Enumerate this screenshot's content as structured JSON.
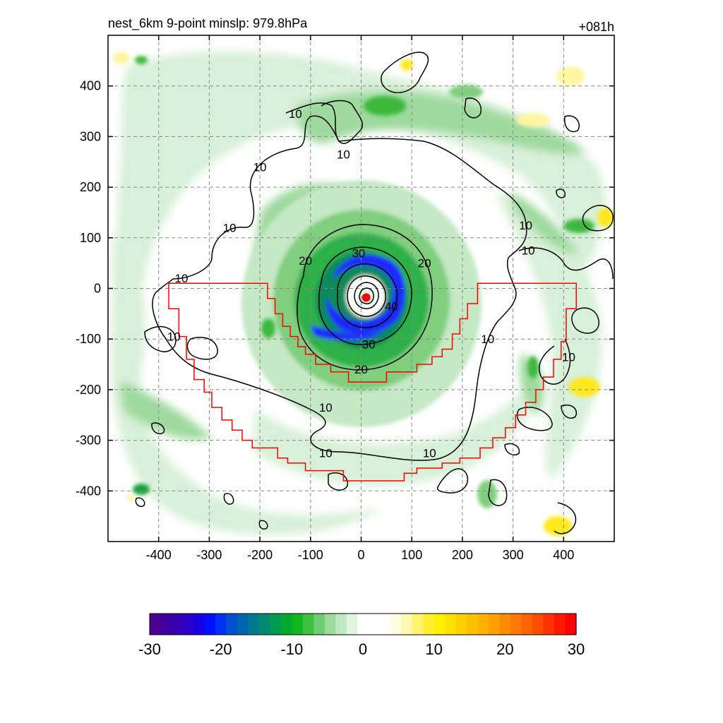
{
  "header": {
    "title": "nest_6km  9-point minslp: 979.8hPa",
    "time_label": "+081h"
  },
  "chart_data": {
    "type": "heatmap",
    "title": "nest_6km  9-point minslp: 979.8hPa",
    "time_label": "+081h",
    "xlim": [
      -500,
      500
    ],
    "ylim": [
      -500,
      500
    ],
    "x_ticks": [
      -400,
      -300,
      -200,
      -100,
      0,
      100,
      200,
      300,
      400
    ],
    "y_ticks": [
      400,
      300,
      200,
      100,
      0,
      -100,
      -200,
      -300,
      -400
    ],
    "x_tick_labels": [
      "-400",
      "-300",
      "-200",
      "-100",
      "0",
      "100",
      "200",
      "300",
      "400"
    ],
    "y_tick_labels": [
      "400",
      "300",
      "200",
      "100",
      "0",
      "-100",
      "-200",
      "-300",
      "-400"
    ],
    "grid": true,
    "storm_center": {
      "x": 10,
      "y": -18,
      "color": "#ff0000"
    },
    "contour_levels": [
      10,
      20,
      30,
      40
    ],
    "contour_labels": [
      {
        "text": "10",
        "x": -130,
        "y": 345
      },
      {
        "text": "10",
        "x": -35,
        "y": 265
      },
      {
        "text": "10",
        "x": -200,
        "y": 240
      },
      {
        "text": "10",
        "x": -260,
        "y": 120
      },
      {
        "text": "10",
        "x": -355,
        "y": 20
      },
      {
        "text": "10",
        "x": -370,
        "y": -95
      },
      {
        "text": "10",
        "x": 325,
        "y": 125
      },
      {
        "text": "10",
        "x": 330,
        "y": 75
      },
      {
        "text": "10",
        "x": 250,
        "y": -100
      },
      {
        "text": "10",
        "x": 410,
        "y": -135
      },
      {
        "text": "10",
        "x": -70,
        "y": -235
      },
      {
        "text": "10",
        "x": -70,
        "y": -325
      },
      {
        "text": "10",
        "x": 135,
        "y": -325
      },
      {
        "text": "20",
        "x": -110,
        "y": 55
      },
      {
        "text": "20",
        "x": 125,
        "y": 50
      },
      {
        "text": "20",
        "x": 0,
        "y": -160
      },
      {
        "text": "30",
        "x": -5,
        "y": 70
      },
      {
        "text": "30",
        "x": 15,
        "y": -110
      },
      {
        "text": "40",
        "x": 60,
        "y": -35
      }
    ],
    "domain_outline_color": "#ff0000",
    "domain_outline": [
      [
        -380,
        10
      ],
      [
        -185,
        10
      ],
      [
        -185,
        -20
      ],
      [
        -170,
        -20
      ],
      [
        -170,
        -50
      ],
      [
        -155,
        -50
      ],
      [
        -155,
        -75
      ],
      [
        -140,
        -75
      ],
      [
        -140,
        -95
      ],
      [
        -125,
        -95
      ],
      [
        -125,
        -115
      ],
      [
        -110,
        -115
      ],
      [
        -110,
        -130
      ],
      [
        -90,
        -130
      ],
      [
        -90,
        -150
      ],
      [
        -60,
        -150
      ],
      [
        -60,
        -165
      ],
      [
        -25,
        -165
      ],
      [
        -25,
        -185
      ],
      [
        50,
        -185
      ],
      [
        50,
        -165
      ],
      [
        110,
        -165
      ],
      [
        110,
        -150
      ],
      [
        140,
        -150
      ],
      [
        140,
        -135
      ],
      [
        160,
        -135
      ],
      [
        160,
        -120
      ],
      [
        180,
        -120
      ],
      [
        180,
        -90
      ],
      [
        195,
        -90
      ],
      [
        195,
        -60
      ],
      [
        210,
        -60
      ],
      [
        210,
        -30
      ],
      [
        230,
        -30
      ],
      [
        230,
        10
      ],
      [
        425,
        10
      ],
      [
        425,
        -40
      ],
      [
        405,
        -40
      ],
      [
        405,
        -105
      ],
      [
        395,
        -105
      ],
      [
        395,
        -140
      ],
      [
        380,
        -140
      ],
      [
        380,
        -175
      ],
      [
        360,
        -175
      ],
      [
        360,
        -200
      ],
      [
        345,
        -200
      ],
      [
        345,
        -225
      ],
      [
        325,
        -225
      ],
      [
        325,
        -250
      ],
      [
        305,
        -250
      ],
      [
        305,
        -275
      ],
      [
        285,
        -275
      ],
      [
        285,
        -295
      ],
      [
        260,
        -295
      ],
      [
        260,
        -315
      ],
      [
        235,
        -315
      ],
      [
        235,
        -335
      ],
      [
        195,
        -335
      ],
      [
        195,
        -345
      ],
      [
        160,
        -345
      ],
      [
        160,
        -355
      ],
      [
        110,
        -355
      ],
      [
        110,
        -365
      ],
      [
        85,
        -365
      ],
      [
        85,
        -380
      ],
      [
        -35,
        -380
      ],
      [
        -35,
        -360
      ],
      [
        -110,
        -360
      ],
      [
        -110,
        -345
      ],
      [
        -145,
        -345
      ],
      [
        -145,
        -335
      ],
      [
        -165,
        -335
      ],
      [
        -165,
        -315
      ],
      [
        -215,
        -315
      ],
      [
        -215,
        -300
      ],
      [
        -235,
        -300
      ],
      [
        -235,
        -280
      ],
      [
        -255,
        -280
      ],
      [
        -255,
        -260
      ],
      [
        -275,
        -260
      ],
      [
        -275,
        -235
      ],
      [
        -295,
        -235
      ],
      [
        -295,
        -205
      ],
      [
        -310,
        -205
      ],
      [
        -310,
        -180
      ],
      [
        -330,
        -180
      ],
      [
        -330,
        -140
      ],
      [
        -345,
        -140
      ],
      [
        -345,
        -95
      ],
      [
        -360,
        -95
      ],
      [
        -360,
        -40
      ],
      [
        -380,
        -40
      ],
      [
        -380,
        10
      ]
    ],
    "colorbar": {
      "min": -30,
      "max": 30,
      "tick_labels": [
        "-30",
        "-20",
        "-10",
        "0",
        "10",
        "20",
        "30"
      ],
      "tick_values": [
        -30,
        -20,
        -10,
        0,
        10,
        20,
        30
      ],
      "colors": [
        "#4b0090",
        "#41009c",
        "#3500b0",
        "#2a00c8",
        "#1a00e0",
        "#0010ff",
        "#0030f0",
        "#0050d0",
        "#0065b0",
        "#007890",
        "#008a70",
        "#009a50",
        "#00aa30",
        "#10b520",
        "#40c040",
        "#70cc70",
        "#9adb9a",
        "#c0e8c0",
        "#e0f4e0",
        "#ffffff",
        "#ffffff",
        "#ffffff",
        "#fffce0",
        "#fff8b0",
        "#fff470",
        "#ffef30",
        "#fff000",
        "#ffe000",
        "#ffd000",
        "#ffc000",
        "#ffb000",
        "#ffa000",
        "#ff8c00",
        "#ff7800",
        "#ff6400",
        "#ff4c00",
        "#ff3200",
        "#ff1800",
        "#ff0000"
      ]
    },
    "shading_colors": {
      "light_green": "#d6efd6",
      "mid_green": "#9ed99e",
      "green": "#3cb83c",
      "dark_green": "#13a037",
      "teal": "#0a7a6e",
      "blue": "#1a2bff",
      "light_yellow": "#fff6a0",
      "yellow": "#ffe81a"
    }
  }
}
